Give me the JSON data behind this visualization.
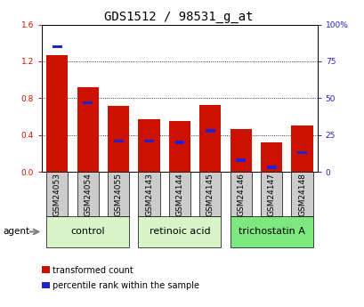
{
  "title": "GDS1512 / 98531_g_at",
  "categories": [
    "GSM24053",
    "GSM24054",
    "GSM24055",
    "GSM24143",
    "GSM24144",
    "GSM24145",
    "GSM24146",
    "GSM24147",
    "GSM24148"
  ],
  "red_values": [
    1.27,
    0.92,
    0.72,
    0.57,
    0.55,
    0.73,
    0.47,
    0.32,
    0.5
  ],
  "blue_values": [
    85,
    47,
    21,
    21,
    20,
    28,
    8,
    3,
    13
  ],
  "ylim_left": [
    0,
    1.6
  ],
  "ylim_right": [
    0,
    100
  ],
  "yticks_left": [
    0,
    0.4,
    0.8,
    1.2,
    1.6
  ],
  "yticks_right": [
    0,
    25,
    50,
    75,
    100
  ],
  "ytick_labels_right": [
    "0",
    "25",
    "50",
    "75",
    "100%"
  ],
  "groups": [
    {
      "label": "control",
      "start": 0,
      "end": 2,
      "color": "#d8f5c8"
    },
    {
      "label": "retinoic acid",
      "start": 3,
      "end": 5,
      "color": "#d8f5c8"
    },
    {
      "label": "trichostatin A",
      "start": 6,
      "end": 8,
      "color": "#7de87d"
    }
  ],
  "bar_width": 0.7,
  "red_color": "#cc1100",
  "blue_color": "#2222cc",
  "left_axis_color": "#cc1100",
  "right_axis_color": "#2222cc",
  "tick_bg_color": "#cccccc",
  "legend": [
    "transformed count",
    "percentile rank within the sample"
  ],
  "agent_label": "agent",
  "title_fontsize": 10,
  "tick_fontsize": 6.5,
  "cat_fontsize": 6.5,
  "group_fontsize": 8,
  "legend_fontsize": 7
}
